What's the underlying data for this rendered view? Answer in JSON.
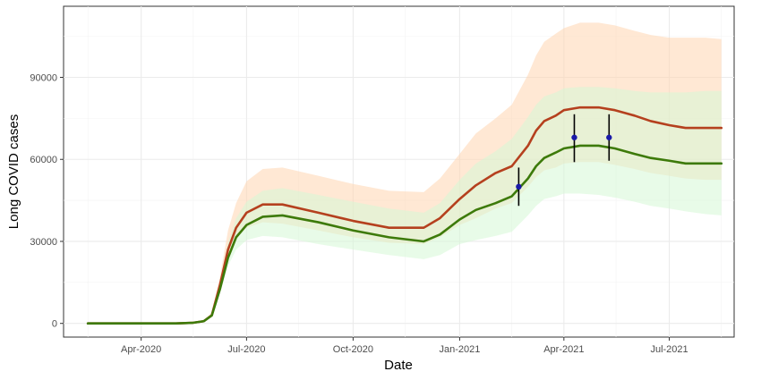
{
  "chart_data": {
    "type": "line",
    "xlabel": "Date",
    "ylabel": "Long COVID cases",
    "x_ticks": [
      "2020-04-01",
      "2020-07-01",
      "2020-10-01",
      "2021-01-01",
      "2021-04-01",
      "2021-07-01"
    ],
    "x_tick_labels": [
      "Apr-2020",
      "Jul-2020",
      "Oct-2020",
      "Jan-2021",
      "Apr-2021",
      "Jul-2021"
    ],
    "y_ticks": [
      0,
      30000,
      60000,
      90000
    ],
    "y_tick_labels": [
      "0",
      "30000",
      "60000",
      "90000"
    ],
    "xlim": [
      "2020-01-25",
      "2021-08-26"
    ],
    "ylim": [
      -5000,
      116000
    ],
    "grid": true,
    "x": [
      "2020-02-15",
      "2020-03-15",
      "2020-04-15",
      "2020-05-01",
      "2020-05-15",
      "2020-05-25",
      "2020-06-01",
      "2020-06-08",
      "2020-06-15",
      "2020-06-22",
      "2020-07-01",
      "2020-07-15",
      "2020-08-01",
      "2020-09-01",
      "2020-10-01",
      "2020-11-01",
      "2020-12-01",
      "2020-12-15",
      "2021-01-01",
      "2021-01-15",
      "2021-02-01",
      "2021-02-15",
      "2021-03-01",
      "2021-03-08",
      "2021-03-15",
      "2021-03-25",
      "2021-04-01",
      "2021-04-15",
      "2021-05-01",
      "2021-05-15",
      "2021-06-01",
      "2021-06-15",
      "2021-07-01",
      "2021-07-15",
      "2021-08-01",
      "2021-08-15"
    ],
    "series": [
      {
        "color": "#b5401e",
        "values": [
          0,
          0,
          0,
          0,
          200,
          800,
          3000,
          14000,
          27000,
          35000,
          40500,
          43500,
          43500,
          40500,
          37500,
          35000,
          35000,
          38500,
          45500,
          50500,
          55000,
          57500,
          65000,
          70500,
          74000,
          76000,
          78000,
          79000,
          79000,
          78000,
          76000,
          74000,
          72500,
          71500,
          71500,
          71500
        ],
        "band_lower": [
          0,
          0,
          0,
          0,
          150,
          700,
          2800,
          13000,
          24000,
          31000,
          35000,
          37000,
          36500,
          34000,
          31500,
          29500,
          29000,
          31500,
          36000,
          38500,
          42000,
          44000,
          50000,
          53500,
          56000,
          57000,
          58500,
          59000,
          59000,
          58000,
          56500,
          55000,
          54000,
          53000,
          52500,
          52500
        ],
        "band_upper": [
          0,
          0,
          0,
          0,
          300,
          1000,
          4000,
          17000,
          34000,
          44000,
          52000,
          56500,
          57000,
          54000,
          51000,
          48500,
          48000,
          53000,
          62000,
          69500,
          75000,
          80000,
          91000,
          98000,
          103000,
          106000,
          108000,
          110000,
          110000,
          109000,
          107000,
          105500,
          104500,
          104500,
          104500,
          104000
        ],
        "band_color": "#ffd5b0"
      },
      {
        "color": "#3d7a0a",
        "values": [
          0,
          0,
          0,
          0,
          200,
          800,
          2900,
          12500,
          24000,
          31500,
          36000,
          39000,
          39500,
          37000,
          34000,
          31500,
          30000,
          32500,
          38000,
          41500,
          44000,
          46500,
          53000,
          57500,
          60500,
          62500,
          64000,
          65000,
          65000,
          64000,
          62000,
          60500,
          59500,
          58500,
          58500,
          58500
        ],
        "band_lower": [
          0,
          0,
          0,
          0,
          150,
          700,
          2500,
          11000,
          21000,
          27000,
          30500,
          32000,
          31500,
          29000,
          27000,
          25000,
          23500,
          25000,
          29000,
          30500,
          32000,
          33500,
          39500,
          43000,
          45500,
          46500,
          47500,
          47500,
          47000,
          46000,
          44500,
          43000,
          42000,
          41000,
          40000,
          39500
        ],
        "band_upper": [
          0,
          0,
          0,
          0,
          250,
          900,
          3400,
          15000,
          29500,
          38500,
          44500,
          48500,
          49500,
          47000,
          44500,
          42000,
          40500,
          44000,
          52500,
          58500,
          63000,
          67500,
          75500,
          80000,
          83000,
          84500,
          86000,
          86500,
          86500,
          86000,
          85000,
          84500,
          84500,
          84500,
          85000,
          85000
        ],
        "band_color": "#d6f7d6"
      }
    ],
    "observations": {
      "x": [
        "2021-02-21",
        "2021-04-10",
        "2021-05-10"
      ],
      "y": [
        50000,
        68000,
        68000
      ],
      "lower": [
        43000,
        59000,
        59500
      ],
      "upper": [
        57000,
        76500,
        76500
      ],
      "color": "#1a1aa8"
    }
  }
}
